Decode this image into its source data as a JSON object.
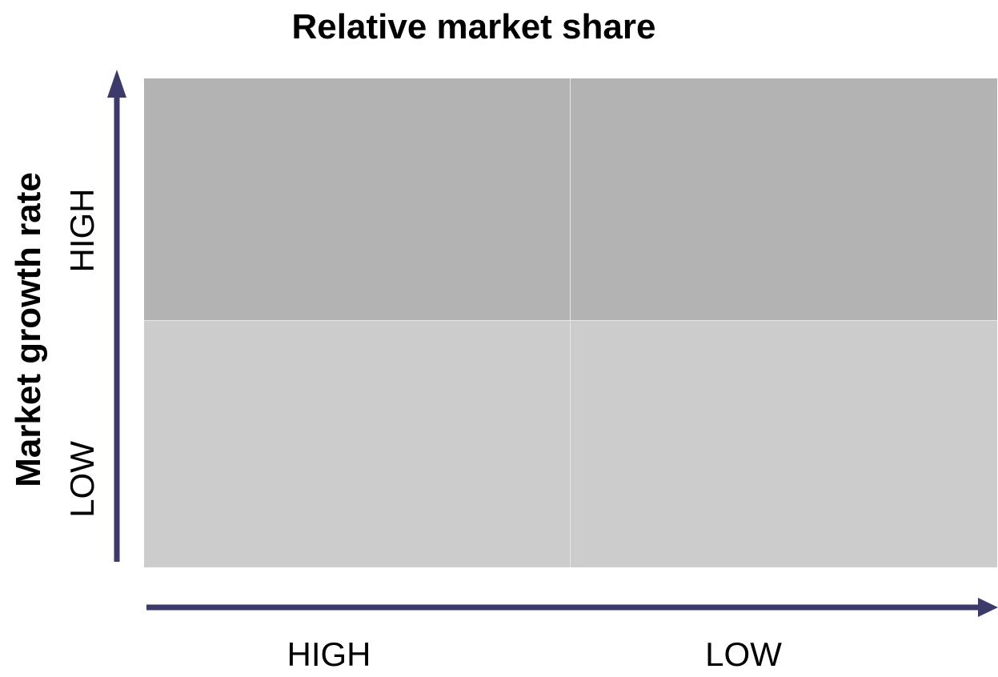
{
  "title": "Relative market share",
  "y_axis": {
    "label": "Market growth rate",
    "ticks": [
      "HIGH",
      "LOW"
    ]
  },
  "x_axis": {
    "ticks": [
      "HIGH",
      "LOW"
    ]
  },
  "colors": {
    "axis": "#3b3a6b",
    "top_quadrants": "#b3b3b3",
    "bottom_quadrants": "#cccccc",
    "divider": "#e6e6e6"
  }
}
